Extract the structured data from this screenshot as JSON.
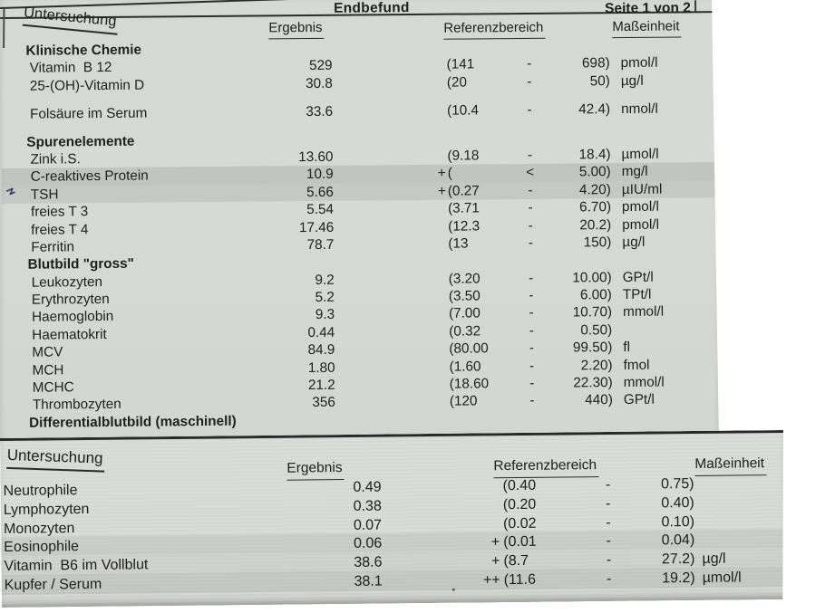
{
  "colors": {
    "paper_top": "#d7d9d5",
    "paper_bottom": "#d9dbd7",
    "row_band": "#c9ccc7",
    "text": "#1e1f1e",
    "line": "#2c2c2c",
    "pen_mark": "#3b3b66"
  },
  "header": {
    "title": "Endbefund",
    "page_label": "Seite 1 von 2",
    "columns": {
      "untersuchung": "Untersuchung",
      "ergebnis": "Ergebnis",
      "referenzbereich": "Referenzbereich",
      "masseinheit": "Maßeinheit"
    }
  },
  "table1": {
    "items": [
      {
        "type": "section",
        "label": "Klinische Chemie"
      },
      {
        "type": "row",
        "label": "Vitamin  B 12",
        "result": "529",
        "flag": "",
        "ref_low": "(141",
        "ref_sep": "-",
        "ref_high": "698)",
        "unit": "pmol/l"
      },
      {
        "type": "row",
        "label": "25-(OH)-Vitamin D",
        "result": "30.8",
        "flag": "",
        "ref_low": "(20",
        "ref_sep": "-",
        "ref_high": "50)",
        "unit": "µg/l"
      },
      {
        "type": "gap"
      },
      {
        "type": "row",
        "label": "Folsäure im Serum",
        "result": "33.6",
        "flag": "",
        "ref_low": "(10.4",
        "ref_sep": "-",
        "ref_high": "42.4)",
        "unit": "nmol/l"
      },
      {
        "type": "gap"
      },
      {
        "type": "section",
        "label": "Spurenelemente"
      },
      {
        "type": "row",
        "label": "Zink i.S.",
        "result": "13.60",
        "flag": "",
        "ref_low": "(9.18",
        "ref_sep": "-",
        "ref_high": "18.4)",
        "unit": "µmol/l"
      },
      {
        "type": "row",
        "label": "C-reaktives Protein",
        "result": "10.9",
        "flag": "+",
        "ref_low": "(",
        "ref_sep": "<",
        "ref_high": "5.00)",
        "unit": "mg/l"
      },
      {
        "type": "row",
        "label": "TSH",
        "result": "5.66",
        "flag": "+",
        "ref_low": "(0.27",
        "ref_sep": "-",
        "ref_high": "4.20)",
        "unit": "µIU/ml"
      },
      {
        "type": "row",
        "label": "freies T 3",
        "result": "5.54",
        "flag": "",
        "ref_low": "(3.71",
        "ref_sep": "-",
        "ref_high": "6.70)",
        "unit": "pmol/l"
      },
      {
        "type": "row",
        "label": "freies T 4",
        "result": "17.46",
        "flag": "",
        "ref_low": "(12.3",
        "ref_sep": "-",
        "ref_high": "20.2)",
        "unit": "pmol/l"
      },
      {
        "type": "row",
        "label": "Ferritin",
        "result": "78.7",
        "flag": "",
        "ref_low": "(13",
        "ref_sep": "-",
        "ref_high": "150)",
        "unit": "µg/l"
      },
      {
        "type": "section",
        "label": "Blutbild \"gross\""
      },
      {
        "type": "row",
        "label": "Leukozyten",
        "result": "9.2",
        "flag": "",
        "ref_low": "(3.20",
        "ref_sep": "-",
        "ref_high": "10.00)",
        "unit": "GPt/l"
      },
      {
        "type": "row",
        "label": "Erythrozyten",
        "result": "5.2",
        "flag": "",
        "ref_low": "(3.50",
        "ref_sep": "-",
        "ref_high": "6.00)",
        "unit": "TPt/l"
      },
      {
        "type": "row",
        "label": "Haemoglobin",
        "result": "9.3",
        "flag": "",
        "ref_low": "(7.00",
        "ref_sep": "-",
        "ref_high": "10.70)",
        "unit": "mmol/l"
      },
      {
        "type": "row",
        "label": "Haematokrit",
        "result": "0.44",
        "flag": "",
        "ref_low": "(0.32",
        "ref_sep": "-",
        "ref_high": "0.50)",
        "unit": ""
      },
      {
        "type": "row",
        "label": "MCV",
        "result": "84.9",
        "flag": "",
        "ref_low": "(80.00",
        "ref_sep": "-",
        "ref_high": "99.50)",
        "unit": "fl"
      },
      {
        "type": "row",
        "label": "MCH",
        "result": "1.80",
        "flag": "",
        "ref_low": "(1.60",
        "ref_sep": "-",
        "ref_high": "2.20)",
        "unit": "fmol"
      },
      {
        "type": "row",
        "label": "MCHC",
        "result": "21.2",
        "flag": "",
        "ref_low": "(18.60",
        "ref_sep": "-",
        "ref_high": "22.30)",
        "unit": "mmol/l"
      },
      {
        "type": "row",
        "label": "Thrombozyten",
        "result": "356",
        "flag": "",
        "ref_low": "(120",
        "ref_sep": "-",
        "ref_high": "440)",
        "unit": "GPt/l"
      },
      {
        "type": "section",
        "label": "Differentialblutbild (maschinell)"
      }
    ]
  },
  "table2": {
    "columns": {
      "untersuchung": "Untersuchung",
      "ergebnis": "Ergebnis",
      "referenzbereich": "Referenzbereich",
      "masseinheit": "Maßeinheit"
    },
    "rows": [
      {
        "label": "Neutrophile",
        "result": "0.49",
        "flag": "",
        "ref_low": "(0.40",
        "ref_sep": "-",
        "ref_high": "0.75)",
        "unit": ""
      },
      {
        "label": "Lymphozyten",
        "result": "0.38",
        "flag": "",
        "ref_low": "(0.20",
        "ref_sep": "-",
        "ref_high": "0.40)",
        "unit": ""
      },
      {
        "label": "Monozyten",
        "result": "0.07",
        "flag": "",
        "ref_low": "(0.02",
        "ref_sep": "-",
        "ref_high": "0.10)",
        "unit": ""
      },
      {
        "label": "Eosinophile",
        "result": "0.06",
        "flag": "+",
        "ref_low": "(0.01",
        "ref_sep": "-",
        "ref_high": "0.04)",
        "unit": ""
      },
      {
        "label": "Vitamin  B6 im Vollblut",
        "result": "38.6",
        "flag": "+",
        "ref_low": "(8.7",
        "ref_sep": "-",
        "ref_high": "27.2)",
        "unit": "µg/l"
      },
      {
        "label": "Kupfer / Serum",
        "result": "38.1",
        "flag": "++",
        "ref_low": "(11.6",
        "ref_sep": "-",
        "ref_high": "19.2)",
        "unit": "µmol/l"
      }
    ]
  }
}
